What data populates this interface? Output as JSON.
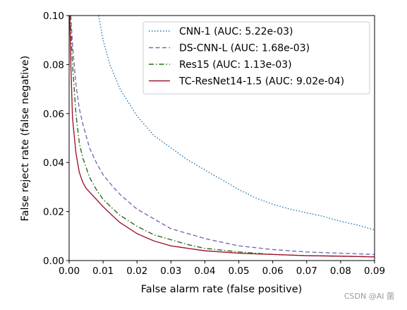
{
  "watermark": "CSDN @AI 菌",
  "chart_data": {
    "type": "line",
    "title": "",
    "xlabel": "False alarm rate (false positive)",
    "ylabel": "False reject rate (false negative)",
    "xlim": [
      0.0,
      0.09
    ],
    "ylim": [
      0.0,
      0.1
    ],
    "xticks": [
      "0.00",
      "0.01",
      "0.02",
      "0.03",
      "0.04",
      "0.05",
      "0.06",
      "0.07",
      "0.08",
      "0.09"
    ],
    "yticks": [
      "0.00",
      "0.02",
      "0.04",
      "0.06",
      "0.08",
      "0.10"
    ],
    "grid": false,
    "legend_position": "upper-right",
    "series": [
      {
        "name": "CNN-1 (AUC: 5.22e-03)",
        "color": "#1f77b4",
        "dash": "dotted",
        "x": [
          0.0087,
          0.01,
          0.012,
          0.015,
          0.02,
          0.025,
          0.03,
          0.035,
          0.04,
          0.045,
          0.05,
          0.055,
          0.06,
          0.065,
          0.07,
          0.075,
          0.08,
          0.085,
          0.09
        ],
        "y": [
          0.1,
          0.09,
          0.08,
          0.07,
          0.059,
          0.051,
          0.046,
          0.041,
          0.037,
          0.033,
          0.029,
          0.0255,
          0.023,
          0.021,
          0.0195,
          0.018,
          0.016,
          0.0145,
          0.0125
        ]
      },
      {
        "name": "DS-CNN-L (AUC: 1.68e-03)",
        "color": "#7b6bb3",
        "dash": "dashed",
        "x": [
          0.0005,
          0.001,
          0.002,
          0.003,
          0.004,
          0.005,
          0.006,
          0.008,
          0.01,
          0.013,
          0.015,
          0.02,
          0.025,
          0.03,
          0.035,
          0.04,
          0.045,
          0.05,
          0.06,
          0.07,
          0.08,
          0.09
        ],
        "y": [
          0.1,
          0.088,
          0.072,
          0.062,
          0.056,
          0.051,
          0.046,
          0.04,
          0.035,
          0.03,
          0.027,
          0.021,
          0.017,
          0.013,
          0.011,
          0.009,
          0.0075,
          0.006,
          0.0045,
          0.0035,
          0.003,
          0.0025
        ]
      },
      {
        "name": "Res15 (AUC: 1.13e-03)",
        "color": "#2d6a1f",
        "dash": "dashdot",
        "x": [
          0.0003,
          0.001,
          0.002,
          0.003,
          0.004,
          0.005,
          0.006,
          0.008,
          0.01,
          0.013,
          0.015,
          0.02,
          0.025,
          0.03,
          0.035,
          0.04,
          0.05,
          0.06,
          0.07,
          0.08,
          0.09
        ],
        "y": [
          0.1,
          0.08,
          0.06,
          0.048,
          0.042,
          0.038,
          0.034,
          0.029,
          0.025,
          0.021,
          0.0185,
          0.014,
          0.0105,
          0.0085,
          0.0065,
          0.005,
          0.0035,
          0.0025,
          0.002,
          0.0018,
          0.0015
        ]
      },
      {
        "name": "TC-ResNet14-1.5 (AUC: 9.02e-04)",
        "color": "#a01830",
        "dash": "solid",
        "x": [
          0.0002,
          0.0005,
          0.001,
          0.002,
          0.003,
          0.004,
          0.005,
          0.006,
          0.008,
          0.01,
          0.013,
          0.015,
          0.02,
          0.025,
          0.03,
          0.035,
          0.04,
          0.05,
          0.06,
          0.07,
          0.08,
          0.09
        ],
        "y": [
          0.1,
          0.08,
          0.058,
          0.044,
          0.036,
          0.032,
          0.0295,
          0.028,
          0.025,
          0.022,
          0.018,
          0.0155,
          0.011,
          0.008,
          0.006,
          0.005,
          0.004,
          0.003,
          0.0025,
          0.002,
          0.0018,
          0.0015
        ]
      }
    ]
  }
}
